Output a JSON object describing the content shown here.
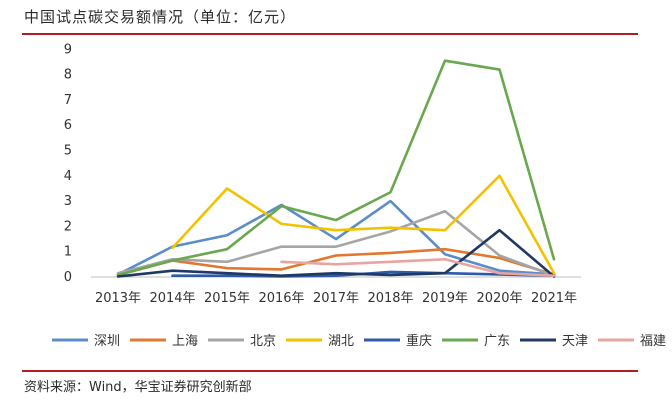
{
  "title": "中国试点碳交易额情况（单位：亿元）",
  "source": "资料来源：Wind，华宝证券研究创新部",
  "chart_data": {
    "type": "line",
    "title": "中国试点碳交易额情况（单位：亿元）",
    "xlabel": "",
    "ylabel": "",
    "ylim": [
      0,
      9
    ],
    "yticks": [
      "0",
      "1",
      "2",
      "3",
      "4",
      "5",
      "6",
      "7",
      "8",
      "9"
    ],
    "categories": [
      "2013年",
      "2014年",
      "2015年",
      "2016年",
      "2017年",
      "2018年",
      "2019年",
      "2020年",
      "2021年"
    ],
    "grid": false,
    "legend_position": "bottom",
    "series": [
      {
        "name": "深圳",
        "color": "#5b8ec9",
        "values": [
          0.1,
          1.2,
          1.65,
          2.85,
          1.5,
          3.0,
          0.9,
          0.25,
          0.1
        ]
      },
      {
        "name": "上海",
        "color": "#e2772d",
        "values": [
          0.08,
          0.65,
          0.35,
          0.3,
          0.85,
          0.95,
          1.1,
          0.75,
          0.1
        ]
      },
      {
        "name": "北京",
        "color": "#a5a5a5",
        "values": [
          0.15,
          0.7,
          0.6,
          1.2,
          1.2,
          1.8,
          2.6,
          0.85,
          0.05
        ]
      },
      {
        "name": "湖北",
        "color": "#f2c200",
        "values": [
          null,
          1.15,
          3.5,
          2.1,
          1.85,
          1.95,
          1.85,
          4.0,
          0.15
        ]
      },
      {
        "name": "重庆",
        "color": "#2e5aa8",
        "values": [
          null,
          0.05,
          0.05,
          0.02,
          0.05,
          0.2,
          0.15,
          0.1,
          0.05
        ]
      },
      {
        "name": "广东",
        "color": "#6aa84f",
        "values": [
          0.08,
          0.65,
          1.1,
          2.8,
          2.25,
          3.35,
          8.55,
          8.2,
          0.7
        ]
      },
      {
        "name": "天津",
        "color": "#1f3864",
        "values": [
          0.02,
          0.25,
          0.15,
          0.05,
          0.15,
          0.08,
          0.15,
          1.85,
          0.02
        ]
      },
      {
        "name": "福建",
        "color": "#e8a4a0",
        "values": [
          null,
          null,
          null,
          0.6,
          0.5,
          0.6,
          0.7,
          0.15,
          0.05
        ]
      }
    ]
  }
}
